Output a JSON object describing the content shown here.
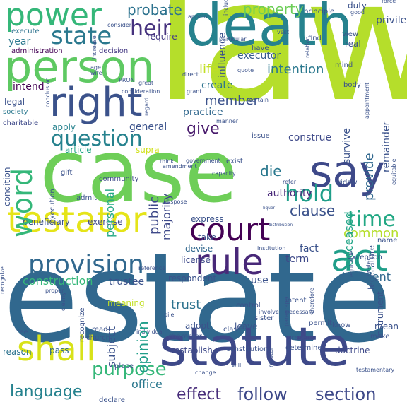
{
  "words": [
    {
      "text": "law",
      "color": "#b5de2b"
    },
    {
      "text": "estate",
      "color": "#31688e"
    },
    {
      "text": "case",
      "color": "#6ece58"
    },
    {
      "text": "death",
      "color": "#26828e"
    },
    {
      "text": "statute",
      "color": "#3e4989"
    },
    {
      "text": "person",
      "color": "#5ec962"
    },
    {
      "text": "testator",
      "color": "#e5e419"
    },
    {
      "text": "court",
      "color": "#440154"
    },
    {
      "text": "rule",
      "color": "#482878"
    },
    {
      "text": "right",
      "color": "#3b528b"
    },
    {
      "text": "act",
      "color": "#1f9e89"
    },
    {
      "text": "say",
      "color": "#3e4989"
    },
    {
      "text": "power",
      "color": "#35b779"
    },
    {
      "text": "provision",
      "color": "#31688e"
    },
    {
      "text": "shall",
      "color": "#d8e219"
    },
    {
      "text": "state",
      "color": "#2a788e"
    },
    {
      "text": "word",
      "color": "#35b779"
    },
    {
      "text": "question",
      "color": "#26828e"
    },
    {
      "text": "probate",
      "color": "#2c728e"
    },
    {
      "text": "property",
      "color": "#6ece58"
    },
    {
      "text": "heir",
      "color": "#46327e"
    },
    {
      "text": "hold",
      "color": "#1f9e89"
    },
    {
      "text": "time",
      "color": "#22a884"
    },
    {
      "text": "follow",
      "color": "#3e4989"
    },
    {
      "text": "section",
      "color": "#3e4989"
    },
    {
      "text": "effect",
      "color": "#472c7a"
    },
    {
      "text": "purpose",
      "color": "#35b779"
    },
    {
      "text": "language",
      "color": "#26828e"
    },
    {
      "text": "intention",
      "color": "#2a788e"
    },
    {
      "text": "member",
      "color": "#3b528b"
    },
    {
      "text": "give",
      "color": "#481a6c"
    },
    {
      "text": "life",
      "color": "#c2df23"
    },
    {
      "text": "clause",
      "color": "#3b528b"
    },
    {
      "text": "public",
      "color": "#3e4989"
    },
    {
      "text": "die",
      "color": "#2a788e"
    },
    {
      "text": "provide",
      "color": "#31688e"
    },
    {
      "text": "common",
      "color": "#b5de2b"
    },
    {
      "text": "construction",
      "color": "#35b779"
    },
    {
      "text": "trustee",
      "color": "#3b528b"
    },
    {
      "text": "opinion",
      "color": "#1f9e89"
    },
    {
      "text": "subject",
      "color": "#3b528b"
    },
    {
      "text": "trust",
      "color": "#2c728e"
    },
    {
      "text": "deceased",
      "color": "#20a486"
    },
    {
      "text": "decedent",
      "color": "#31688e"
    },
    {
      "text": "general",
      "color": "#3b528b"
    },
    {
      "text": "personal",
      "color": "#22a884"
    },
    {
      "text": "majority",
      "color": "#3e4989"
    },
    {
      "text": "year",
      "color": "#2a788e"
    },
    {
      "text": "administration",
      "color": "#440154"
    },
    {
      "text": "decision",
      "color": "#443983"
    },
    {
      "text": "execute",
      "color": "#2c728e"
    },
    {
      "text": "require",
      "color": "#443983"
    },
    {
      "text": "influence",
      "color": "#3b528b"
    },
    {
      "text": "executor",
      "color": "#365c8d"
    },
    {
      "text": "create",
      "color": "#2c728e"
    },
    {
      "text": "practice",
      "color": "#31688e"
    },
    {
      "text": "construe",
      "color": "#3e4989"
    },
    {
      "text": "authority",
      "color": "#482878"
    },
    {
      "text": "apply",
      "color": "#26828e"
    },
    {
      "text": "community",
      "color": "#3e4989"
    },
    {
      "text": "intend",
      "color": "#440154"
    },
    {
      "text": "legal",
      "color": "#3b528b"
    },
    {
      "text": "society",
      "color": "#2a788e"
    },
    {
      "text": "charitable",
      "color": "#3e4989"
    },
    {
      "text": "article",
      "color": "#20a486"
    },
    {
      "text": "supra",
      "color": "#d0e11c"
    },
    {
      "text": "beneficiary",
      "color": "#3b528b"
    },
    {
      "text": "exercise",
      "color": "#3e4989"
    },
    {
      "text": "express",
      "color": "#3b528b"
    },
    {
      "text": "take",
      "color": "#3b528b"
    },
    {
      "text": "devise",
      "color": "#31688e"
    },
    {
      "text": "fact",
      "color": "#3b528b"
    },
    {
      "text": "term",
      "color": "#3e4989"
    },
    {
      "text": "name",
      "color": "#3b528b"
    },
    {
      "text": "license",
      "color": "#3e4989"
    },
    {
      "text": "respondent",
      "color": "#3b528b"
    },
    {
      "text": "use",
      "color": "#3b528b"
    },
    {
      "text": "adopt",
      "color": "#3b528b"
    },
    {
      "text": "leave",
      "color": "#3b528b"
    },
    {
      "text": "mean",
      "color": "#3b528b"
    },
    {
      "text": "meaning",
      "color": "#c2df23"
    },
    {
      "text": "reason",
      "color": "#2c728e"
    },
    {
      "text": "pass",
      "color": "#31688e"
    },
    {
      "text": "establish",
      "color": "#3e4989"
    },
    {
      "text": "constitution",
      "color": "#3b528b"
    },
    {
      "text": "doctrine",
      "color": "#3e4989"
    },
    {
      "text": "office",
      "color": "#2a788e"
    },
    {
      "text": "declare",
      "color": "#3b528b"
    },
    {
      "text": "place",
      "color": "#3b528b"
    },
    {
      "text": "fee",
      "color": "#3b528b"
    },
    {
      "text": "church",
      "color": "#3b528b"
    },
    {
      "text": "survive",
      "color": "#3b528b"
    },
    {
      "text": "remainder",
      "color": "#3b528b"
    },
    {
      "text": "widow",
      "color": "#3b528b"
    },
    {
      "text": "issue",
      "color": "#3b528b"
    },
    {
      "text": "exist",
      "color": "#3b528b"
    },
    {
      "text": "government",
      "color": "#3b528b"
    },
    {
      "text": "real",
      "color": "#3b528b"
    },
    {
      "text": "find",
      "color": "#3b528b"
    },
    {
      "text": "view",
      "color": "#3b528b"
    },
    {
      "text": "have",
      "color": "#3b528b"
    },
    {
      "text": "duty",
      "color": "#3b528b"
    },
    {
      "text": "principle",
      "color": "#3b528b"
    },
    {
      "text": "establish",
      "color": "#3b528b"
    },
    {
      "text": "condition",
      "color": "#3b528b"
    },
    {
      "text": "execution",
      "color": "#3b528b"
    },
    {
      "text": "institution",
      "color": "#3b528b"
    },
    {
      "text": "legislature",
      "color": "#3b528b"
    },
    {
      "text": "instrument",
      "color": "#3b528b"
    },
    {
      "text": "intent",
      "color": "#3b528b"
    },
    {
      "text": "control",
      "color": "#3b528b"
    },
    {
      "text": "make",
      "color": "#3b528b"
    },
    {
      "text": "know",
      "color": "#3b528b"
    },
    {
      "text": "permit",
      "color": "#3b528b"
    },
    {
      "text": "present",
      "color": "#3b528b"
    },
    {
      "text": "determine",
      "color": "#3b528b"
    },
    {
      "text": "character",
      "color": "#3b528b"
    },
    {
      "text": "class",
      "color": "#3b528b"
    },
    {
      "text": "sister",
      "color": "#3b528b"
    },
    {
      "text": "recognize",
      "color": "#3b528b"
    },
    {
      "text": "testamentary",
      "color": "#3b528b"
    },
    {
      "text": "will",
      "color": "#3b528b"
    },
    {
      "text": "admit",
      "color": "#3b528b"
    },
    {
      "text": "gift",
      "color": "#3b528b"
    },
    {
      "text": "dispose",
      "color": "#3b528b"
    },
    {
      "text": "capacity",
      "color": "#3b528b"
    },
    {
      "text": "refer",
      "color": "#3b528b"
    },
    {
      "text": "certain",
      "color": "#3b528b"
    },
    {
      "text": "grant",
      "color": "#3b528b"
    },
    {
      "text": "direct",
      "color": "#3b528b"
    },
    {
      "text": "body",
      "color": "#3b528b"
    },
    {
      "text": "mind",
      "color": "#3b528b"
    },
    {
      "text": "appoint",
      "color": "#3b528b"
    },
    {
      "text": "consider",
      "color": "#3b528b"
    },
    {
      "text": "age",
      "color": "#3b528b"
    },
    {
      "text": "wife",
      "color": "#3b528b"
    },
    {
      "text": "great",
      "color": "#3b528b"
    },
    {
      "text": "conclusion",
      "color": "#3b528b"
    },
    {
      "text": "manner",
      "color": "#3b528b"
    },
    {
      "text": "think",
      "color": "#3b528b"
    },
    {
      "text": "regard",
      "color": "#3b528b"
    },
    {
      "text": "appointment",
      "color": "#3b528b"
    },
    {
      "text": "particular",
      "color": "#3b528b"
    },
    {
      "text": "vest",
      "color": "#3b528b"
    },
    {
      "text": "relation",
      "color": "#3b528b"
    },
    {
      "text": "quote",
      "color": "#3b528b"
    },
    {
      "text": "consideration",
      "color": "#3b528b"
    },
    {
      "text": "good",
      "color": "#3b528b"
    },
    {
      "text": "force",
      "color": "#3b528b"
    },
    {
      "text": "privilege",
      "color": "#3b528b"
    },
    {
      "text": "water",
      "color": "#3b528b"
    },
    {
      "text": "exception",
      "color": "#3b528b"
    },
    {
      "text": "liquor",
      "color": "#3b528b"
    },
    {
      "text": "reference",
      "color": "#3b528b"
    },
    {
      "text": "distribution",
      "color": "#3b528b"
    },
    {
      "text": "equitable",
      "color": "#3b528b"
    },
    {
      "text": "amendment",
      "color": "#3b528b"
    },
    {
      "text": "individual",
      "color": "#3b528b"
    },
    {
      "text": "pile",
      "color": "#3b528b"
    },
    {
      "text": "master",
      "color": "#3b528b"
    },
    {
      "text": "necessary",
      "color": "#3b528b"
    },
    {
      "text": "paragraph",
      "color": "#3b528b"
    },
    {
      "text": "therefore",
      "color": "#3b528b"
    },
    {
      "text": "involve",
      "color": "#3b528b"
    },
    {
      "text": "clearly",
      "color": "#3b528b"
    },
    {
      "text": "proper",
      "color": "#3b528b"
    },
    {
      "text": "read",
      "color": "#3b528b"
    },
    {
      "text": "change",
      "color": "#3b528b"
    },
    {
      "text": "PRON",
      "color": "#3b528b"
    },
    {
      "text": "include",
      "color": "#3b528b"
    },
    {
      "text": "increase",
      "color": "#3b528b"
    },
    {
      "text": "exec",
      "color": "#3b528b"
    },
    {
      "text": "judicial",
      "color": "#3b528b"
    },
    {
      "text": "state",
      "color": "#3b528b"
    }
  ]
}
